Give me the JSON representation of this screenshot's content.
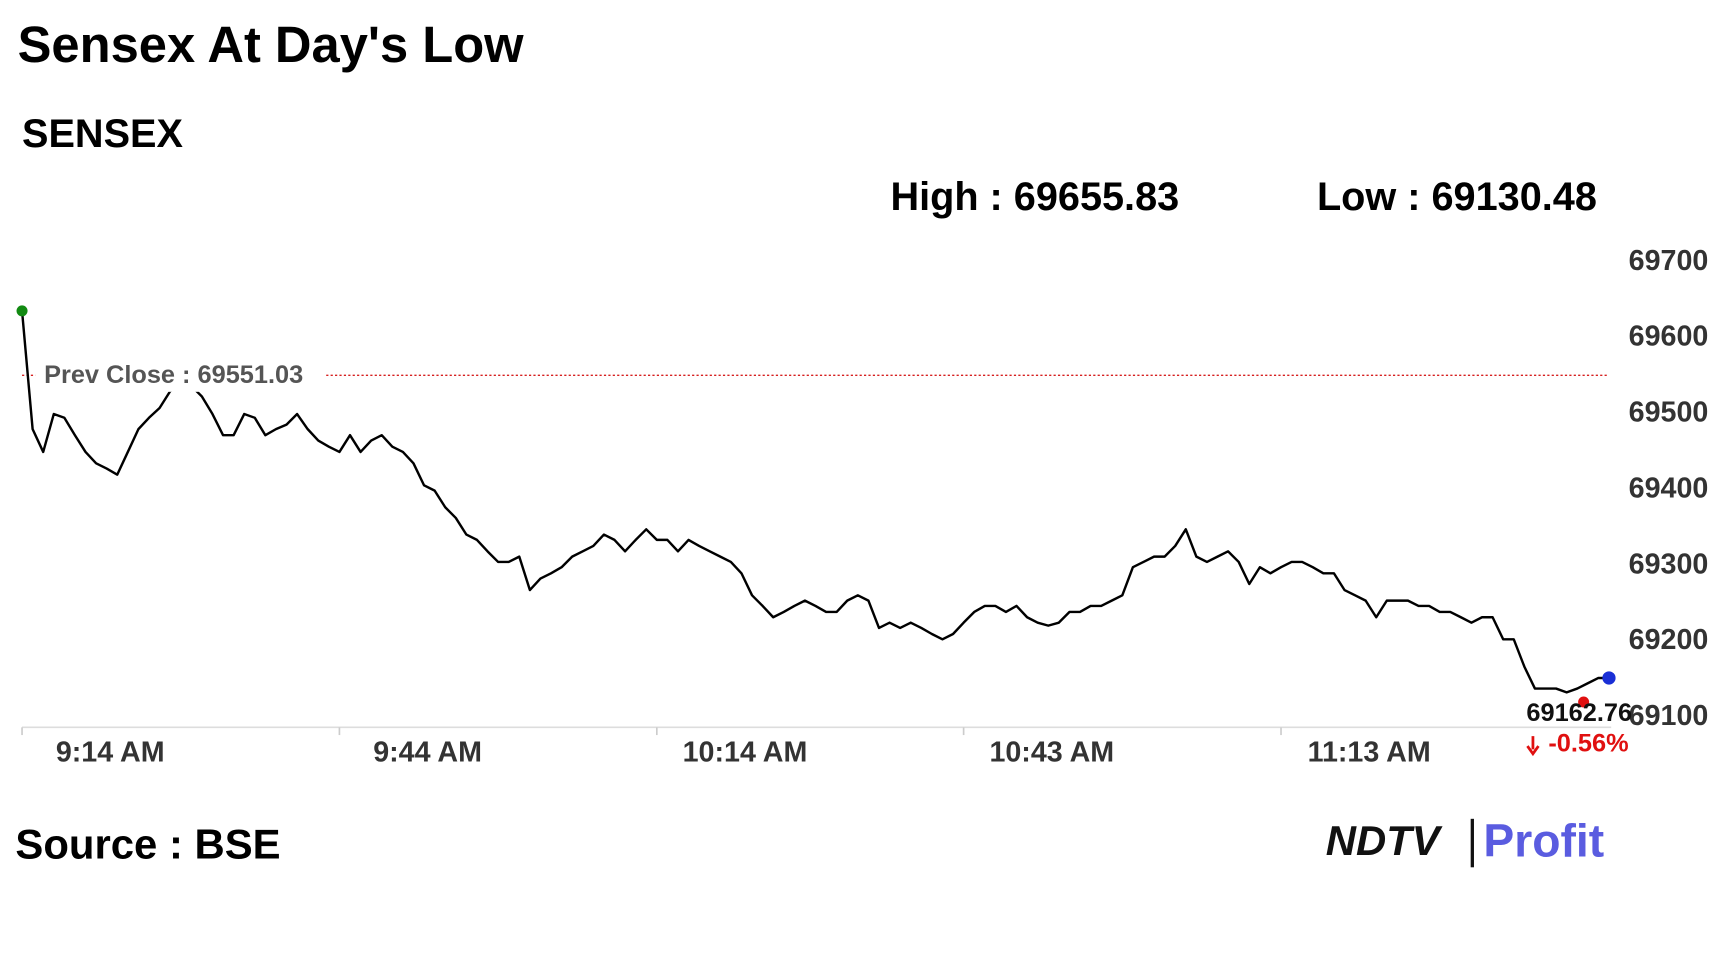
{
  "chart_data": {
    "type": "line",
    "title": "Sensex At Day's Low",
    "subtitle": "SENSEX",
    "high_label": "High : 69655.83",
    "low_label": "Low : 69130.48",
    "ref_line": {
      "value": 69551.03,
      "label": "Prev Close : 69551.03",
      "color": "#d62020"
    },
    "current_value": "69162.76",
    "change": "-0.56%",
    "categories": [
      "9:14 AM",
      null,
      null,
      null,
      null,
      null,
      null,
      null,
      null,
      null,
      null,
      null,
      null,
      null,
      null,
      null,
      null,
      null,
      null,
      null,
      null,
      null,
      null,
      null,
      null,
      null,
      null,
      null,
      null,
      null,
      "9:44 AM",
      null,
      null,
      null,
      null,
      null,
      null,
      null,
      null,
      null,
      null,
      null,
      null,
      null,
      null,
      null,
      null,
      null,
      null,
      null,
      null,
      null,
      null,
      null,
      null,
      null,
      null,
      null,
      null,
      null,
      "10:14 AM",
      null,
      null,
      null,
      null,
      null,
      null,
      null,
      null,
      null,
      null,
      null,
      null,
      null,
      null,
      null,
      null,
      null,
      null,
      null,
      null,
      null,
      null,
      null,
      null,
      null,
      null,
      null,
      null,
      "10:43 AM",
      null,
      null,
      null,
      null,
      null,
      null,
      null,
      null,
      null,
      null,
      null,
      null,
      null,
      null,
      null,
      null,
      null,
      null,
      null,
      null,
      null,
      null,
      null,
      null,
      null,
      null,
      null,
      null,
      null,
      "11:13 AM",
      null,
      null,
      null,
      null,
      null,
      null,
      null,
      null,
      null,
      null,
      null,
      null,
      null,
      null,
      null,
      null,
      null,
      null,
      null,
      null,
      null,
      null,
      null,
      null,
      null,
      null,
      null,
      null,
      null,
      null,
      null
    ],
    "series": [
      {
        "color": "#000000",
        "values": [
          69636,
          69480,
          69450,
          69500,
          69495,
          69472,
          69450,
          69435,
          69428,
          69420,
          69450,
          69480,
          69495,
          69508,
          69530,
          69537,
          69537,
          69523,
          69500,
          69472,
          69472,
          69500,
          69495,
          69472,
          69480,
          69486,
          69500,
          69480,
          69465,
          69457,
          69450,
          69472,
          69450,
          69465,
          69472,
          69457,
          69450,
          69435,
          69406,
          69399,
          69377,
          69363,
          69341,
          69334,
          69319,
          69305,
          69305,
          69312,
          69268,
          69283,
          69290,
          69298,
          69312,
          69319,
          69326,
          69341,
          69334,
          69319,
          69334,
          69348,
          69334,
          69334,
          69319,
          69334,
          69326,
          69319,
          69312,
          69305,
          69290,
          69261,
          69247,
          69232,
          69239,
          69247,
          69254,
          69247,
          69239,
          69239,
          69254,
          69261,
          69254,
          69218,
          69225,
          69218,
          69225,
          69218,
          69210,
          69203,
          69210,
          69225,
          69239,
          69247,
          69247,
          69239,
          69247,
          69232,
          69225,
          69221,
          69225,
          69239,
          69239,
          69247,
          69247,
          69254,
          69261,
          69298,
          69305,
          69312,
          69312,
          69326,
          69348,
          69312,
          69305,
          69312,
          69319,
          69305,
          69276,
          69298,
          69290,
          69298,
          69305,
          69305,
          69298,
          69290,
          69290,
          69268,
          69261,
          69254,
          69232,
          69254,
          69254,
          69254,
          69247,
          69247,
          69239,
          69239,
          69232,
          69225,
          69232,
          69232,
          69203,
          69203,
          69167,
          69138,
          69138,
          69138,
          69133,
          69138,
          69145,
          69152,
          69152
        ]
      }
    ],
    "ylim": [
      69100,
      69700
    ],
    "yticks": [
      69100,
      69200,
      69300,
      69400,
      69500,
      69600,
      69700
    ],
    "grid": false,
    "source": "Source : BSE",
    "logo": {
      "brand": "NDTV",
      "product": "Profit"
    }
  }
}
